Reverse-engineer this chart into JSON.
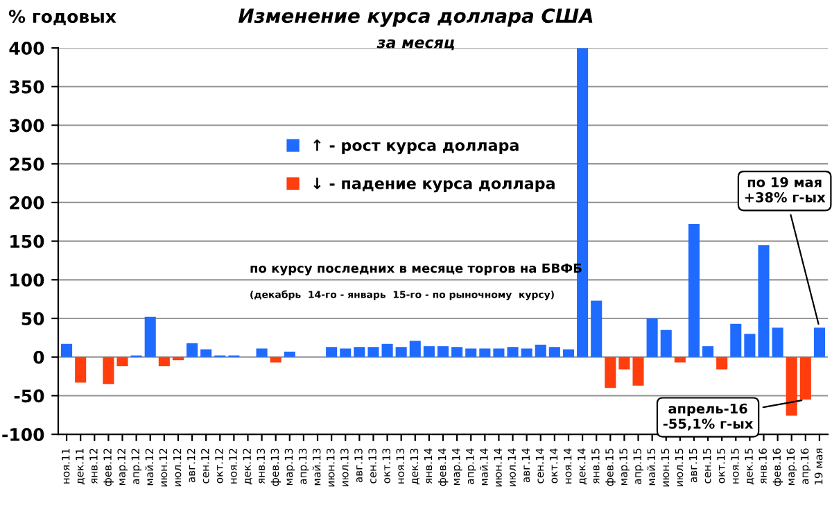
{
  "chart_data": {
    "type": "bar",
    "title": "Изменение курса доллара США",
    "subtitle": "за месяц",
    "ylabel": "% годовых",
    "categories": [
      "ноя.11",
      "дек.11",
      "янв.12",
      "фев.12",
      "мар.12",
      "апр.12",
      "май.12",
      "июн.12",
      "июл.12",
      "авг.12",
      "сен.12",
      "окт.12",
      "ноя.12",
      "дек.12",
      "янв.13",
      "фев.13",
      "мар.13",
      "апр.13",
      "май.13",
      "июн.13",
      "июл.13",
      "авг.13",
      "сен.13",
      "окт.13",
      "ноя.13",
      "дек.13",
      "янв.14",
      "фев.14",
      "мар.14",
      "апр.14",
      "май.14",
      "июн.14",
      "июл.14",
      "авг.14",
      "сен.14",
      "окт.14",
      "ноя.14",
      "дек.14",
      "янв.15",
      "фев.15",
      "мар.15",
      "апр.15",
      "май.15",
      "июн.15",
      "июл.15",
      "авг.15",
      "сен.15",
      "окт.15",
      "ноя.15",
      "дек.15",
      "янв.16",
      "фев.16",
      "мар.16",
      "апр.16",
      "19 мая"
    ],
    "series": [
      {
        "name": "↑ - рост курса доллара",
        "color": "#1f6bff",
        "values": [
          17,
          null,
          null,
          null,
          null,
          2,
          52,
          null,
          null,
          18,
          10,
          2,
          2,
          null,
          11,
          null,
          7,
          null,
          null,
          13,
          11,
          13,
          13,
          17,
          13,
          21,
          14,
          14,
          13,
          11,
          11,
          11,
          13,
          11,
          16,
          13,
          10,
          400,
          73,
          null,
          null,
          null,
          50,
          35,
          null,
          172,
          14,
          null,
          43,
          30,
          145,
          38,
          null,
          null,
          38
        ]
      },
      {
        "name": "↓ - падение курса доллара",
        "color": "#ff3d0d",
        "values": [
          null,
          -33,
          null,
          -35,
          -12,
          null,
          null,
          -12,
          -4,
          null,
          null,
          null,
          null,
          null,
          null,
          -7,
          null,
          null,
          null,
          null,
          null,
          null,
          null,
          null,
          null,
          null,
          null,
          null,
          null,
          null,
          null,
          null,
          null,
          null,
          null,
          null,
          null,
          null,
          null,
          -40,
          -16,
          -37,
          null,
          null,
          -7,
          null,
          null,
          -16,
          null,
          null,
          null,
          null,
          -76,
          -55.1,
          null
        ]
      }
    ],
    "ylim": [
      -100,
      400
    ],
    "yticks": [
      -100,
      -50,
      0,
      50,
      100,
      150,
      200,
      250,
      300,
      350,
      400
    ],
    "grid": "y",
    "legend": "top left",
    "annotations": [
      "по курсу последних в месяце торгов на БВФБ",
      "(декабрь  14-го - январь  15-го - по рыночному  курсу)",
      {
        "text": "по 19 мая\n+38% г-ых",
        "x": "19 мая",
        "y": 38
      },
      {
        "text": "апрель-16\n-55,1% г-ых",
        "x": "апр.16",
        "y": -55.1
      }
    ]
  }
}
